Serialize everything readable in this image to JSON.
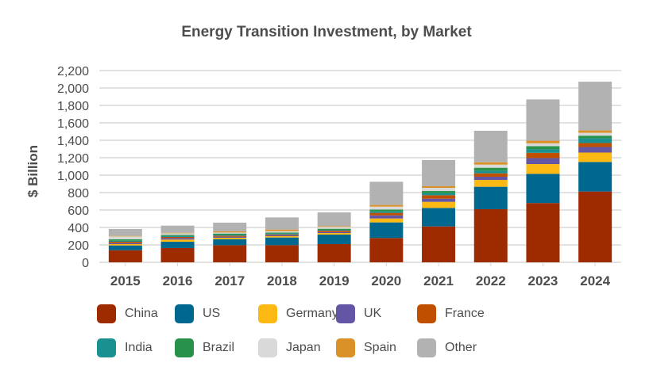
{
  "chart_data": {
    "type": "bar",
    "stacked": true,
    "title": "Energy Transition Investment, by Market",
    "xlabel": "",
    "ylabel": "$ Billion",
    "ylim": [
      0,
      2200
    ],
    "yticks": [
      0,
      200,
      400,
      600,
      800,
      1000,
      1200,
      1400,
      1600,
      1800,
      2000,
      2200
    ],
    "ytick_labels": [
      "0",
      "200",
      "400",
      "600",
      "800",
      "1,000",
      "1,200",
      "1,400",
      "1,600",
      "1,800",
      "2,000",
      "2,200"
    ],
    "grid": true,
    "legend_position": "bottom",
    "categories": [
      "2015",
      "2016",
      "2017",
      "2018",
      "2019",
      "2020",
      "2021",
      "2022",
      "2023",
      "2024"
    ],
    "series": [
      {
        "name": "China",
        "color": "#9E2A00",
        "values": [
          139,
          164,
          197,
          197,
          209,
          279,
          412,
          609,
          680,
          812
        ]
      },
      {
        "name": "US",
        "color": "#00688F",
        "values": [
          55,
          72,
          67,
          88,
          109,
          179,
          212,
          258,
          335,
          339
        ]
      },
      {
        "name": "Germany",
        "color": "#FDB913",
        "values": [
          15,
          25,
          18,
          15,
          18,
          45,
          70,
          78,
          112,
          108
        ]
      },
      {
        "name": "UK",
        "color": "#6456A4",
        "values": [
          12,
          18,
          12,
          12,
          12,
          36,
          36,
          37,
          69,
          64
        ]
      },
      {
        "name": "France",
        "color": "#C04F00",
        "values": [
          15,
          12,
          12,
          9,
          16,
          28,
          40,
          39,
          60,
          45
        ]
      },
      {
        "name": "India",
        "color": "#1A9190",
        "values": [
          12,
          12,
          12,
          12,
          9,
          18,
          24,
          30,
          40,
          54
        ]
      },
      {
        "name": "Brazil",
        "color": "#28924A",
        "values": [
          16,
          12,
          12,
          9,
          12,
          21,
          24,
          34,
          36,
          31
        ]
      },
      {
        "name": "Japan",
        "color": "#D9D9D9",
        "values": [
          33,
          18,
          12,
          16,
          21,
          33,
          36,
          36,
          33,
          33
        ]
      },
      {
        "name": "Spain",
        "color": "#DA9228",
        "values": [
          6,
          6,
          13,
          18,
          9,
          19,
          19,
          27,
          30,
          27
        ]
      },
      {
        "name": "Other",
        "color": "#B2B2B2",
        "values": [
          79,
          82,
          100,
          139,
          158,
          266,
          300,
          361,
          474,
          559
        ]
      }
    ]
  }
}
